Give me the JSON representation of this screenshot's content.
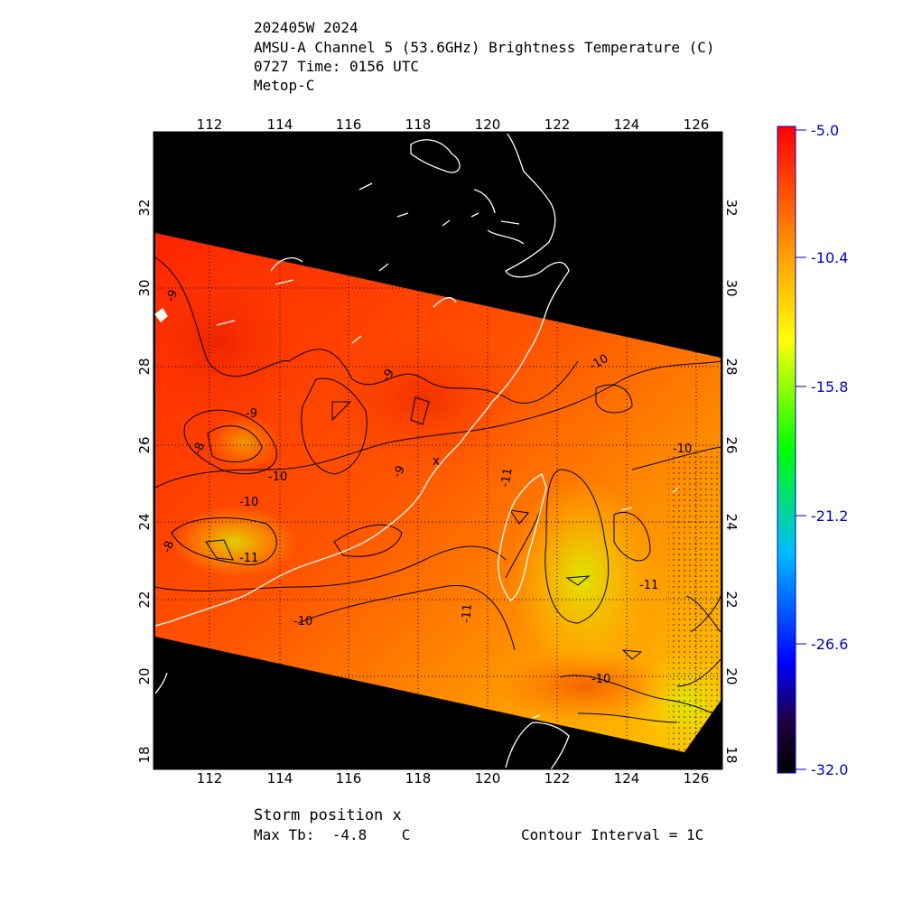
{
  "header": {
    "line1": "202405W 2024",
    "line2": "AMSU-A Channel 5 (53.6GHz) Brightness Temperature (C)",
    "line3": "0727 Time: 0156 UTC",
    "line4": "Metop-C"
  },
  "map": {
    "lon_ticks": [
      "112",
      "114",
      "116",
      "118",
      "120",
      "122",
      "124",
      "126"
    ],
    "lat_ticks": [
      "18",
      "20",
      "22",
      "24",
      "26",
      "28",
      "30",
      "32"
    ],
    "contour_labels": [
      "-9",
      "-9",
      "-9",
      "-9",
      "-10",
      "-10",
      "-10",
      "-10",
      "-10",
      "-10",
      "-11",
      "-11",
      "-11",
      "-8",
      "-8",
      "-11"
    ],
    "storm_marker": "x"
  },
  "colorbar": {
    "labels": [
      "-5.0",
      "-10.4",
      "-15.8",
      "-21.2",
      "-26.6",
      "-32.0"
    ],
    "colors": [
      "#ff0000",
      "#ff8800",
      "#ffff00",
      "#00ff00",
      "#00bbff",
      "#0000ff",
      "#200040",
      "#000000"
    ]
  },
  "footer": {
    "storm": "Storm position x",
    "maxtb": "Max Tb:  -4.8    C",
    "contour": "Contour Interval = 1C"
  }
}
